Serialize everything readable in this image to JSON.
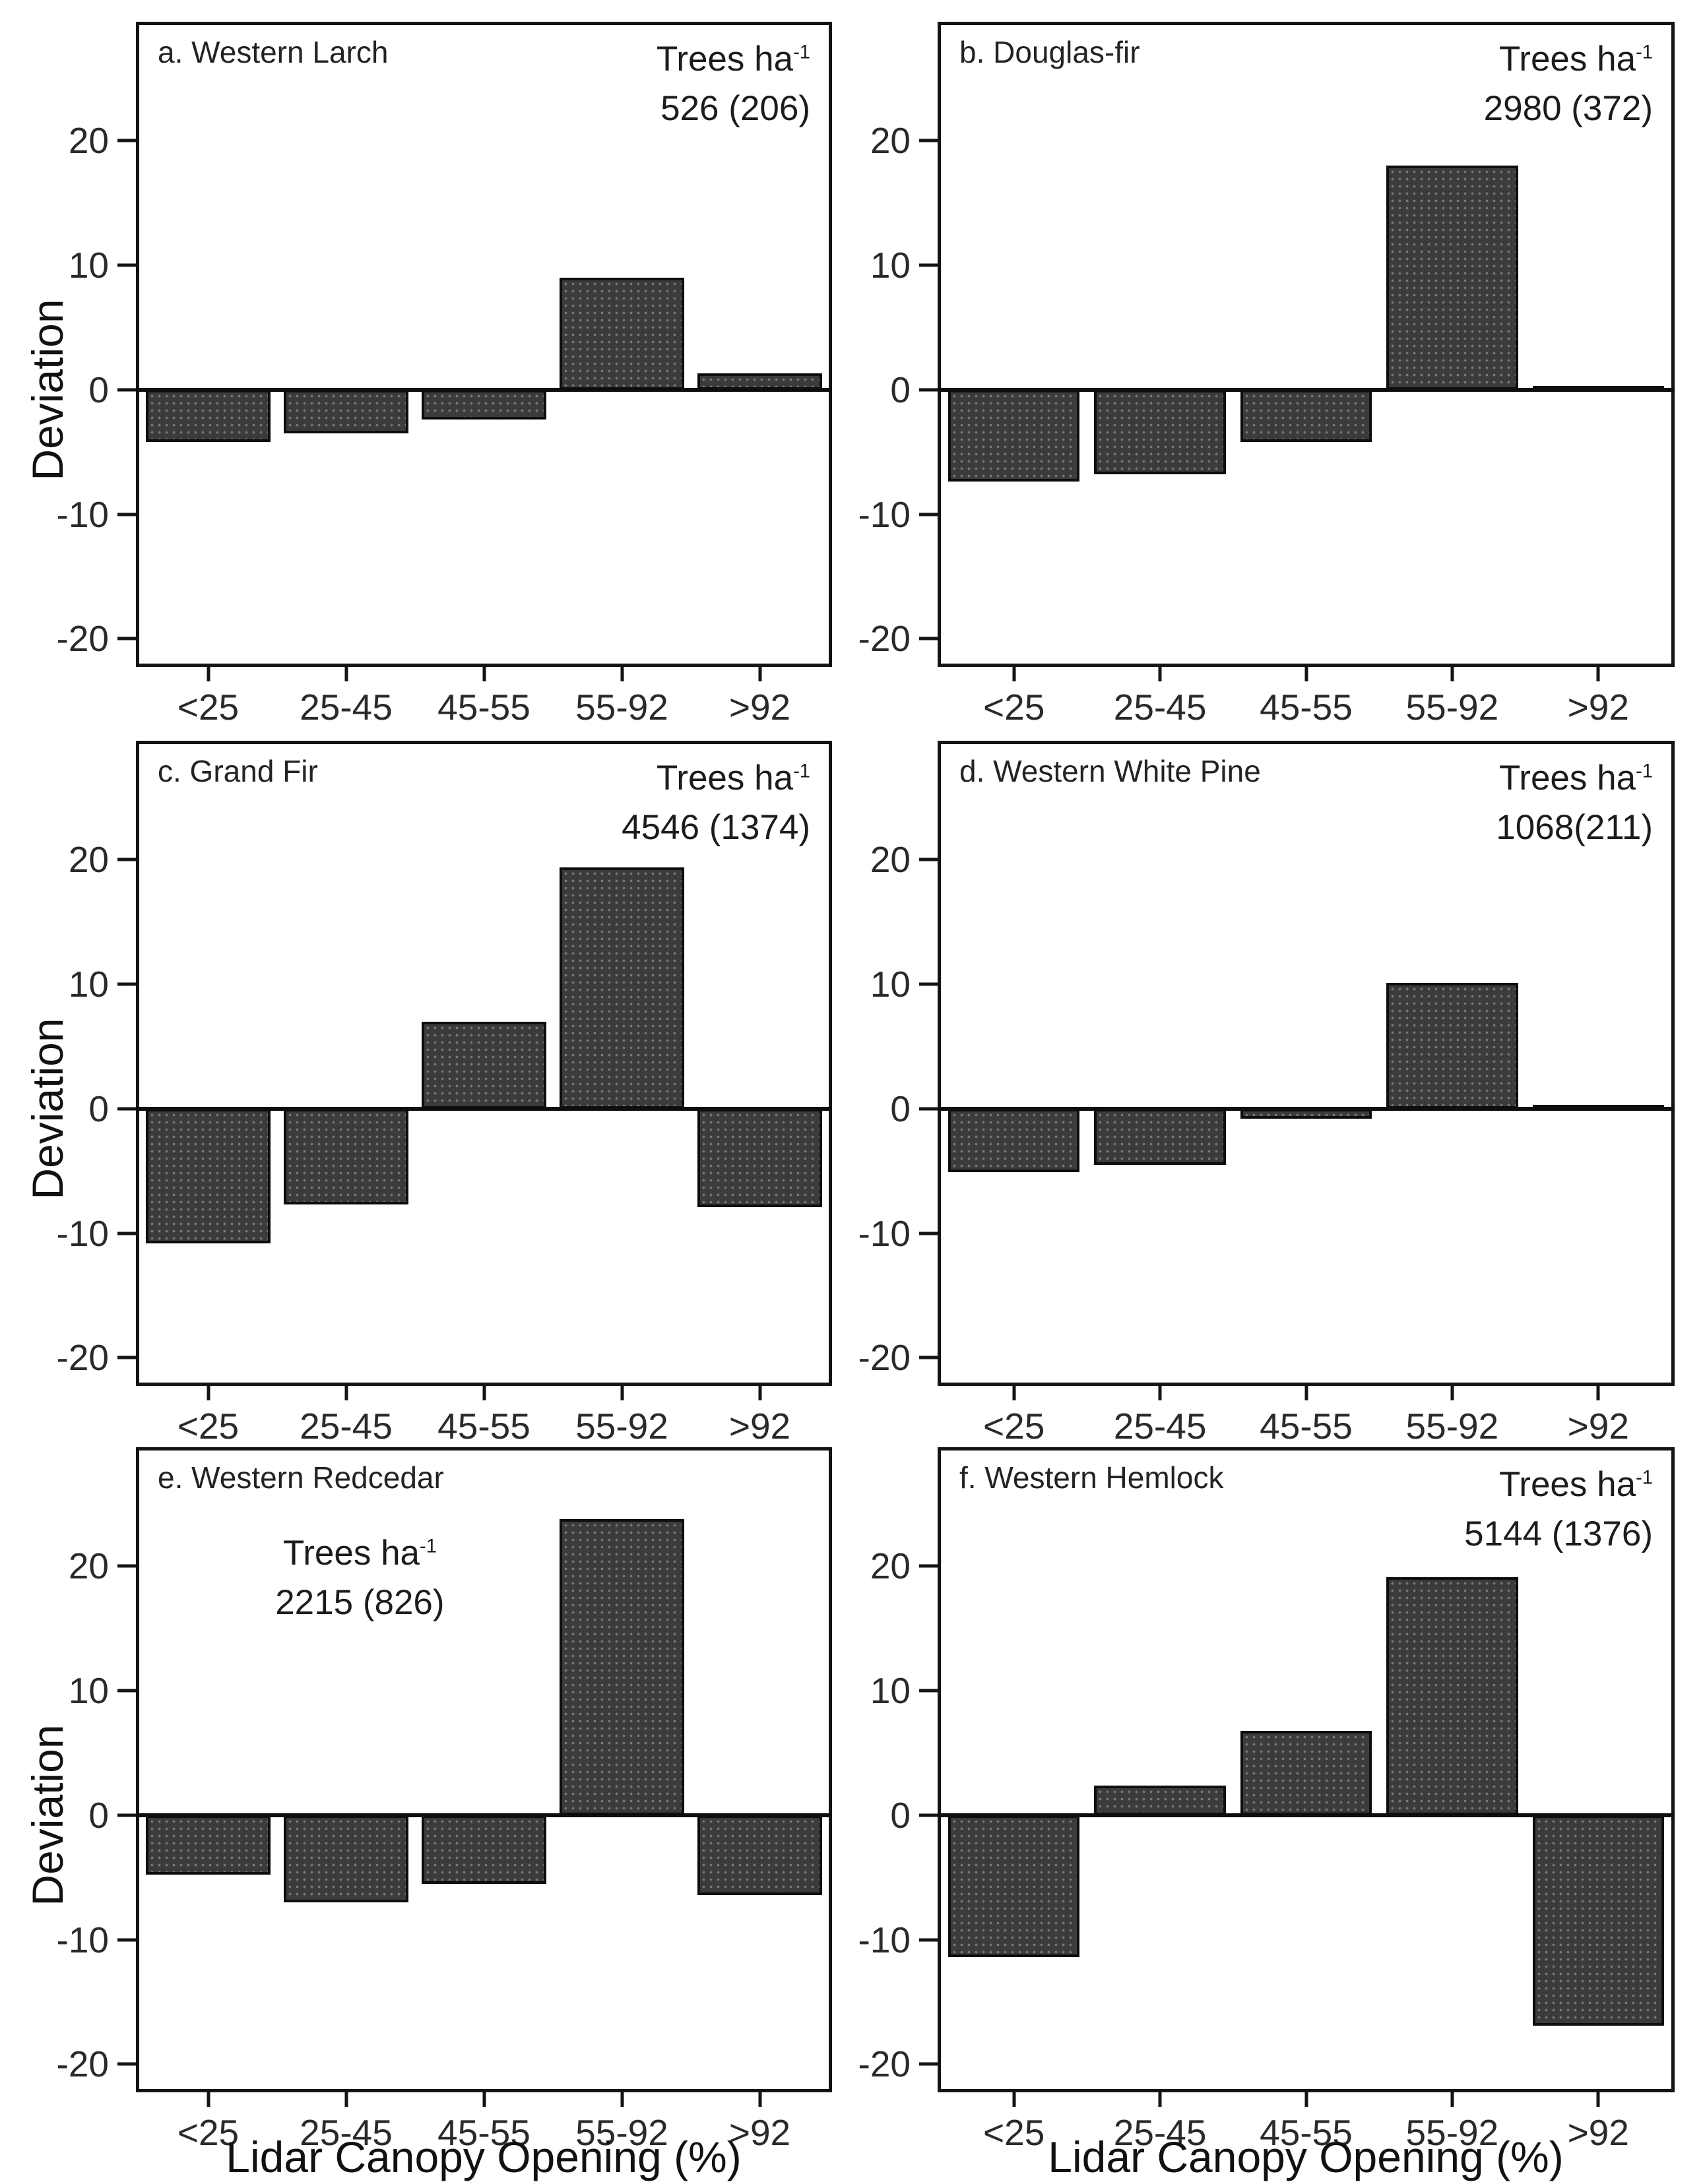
{
  "figure": {
    "background": "#ffffff",
    "text_color": "#1c1c1c",
    "bar_fill": "#3b3b3b",
    "line_color": "#141414"
  },
  "chart_data": {
    "type": "bar",
    "ylabel": "Deviation",
    "xlabel": "Lidar Canopy Opening (%)",
    "categories": [
      "<25",
      "25-45",
      "45-55",
      "55-92",
      ">92"
    ],
    "y_ticks": [
      20,
      10,
      0,
      -10,
      -20
    ],
    "ylim": [
      -22,
      29.3
    ],
    "grid": false,
    "unit_label": {
      "prefix": "Trees ha",
      "sup": "-1"
    },
    "panels": [
      {
        "id": "a",
        "title": "a. Western Larch",
        "trees_ha": "526 (206)",
        "annotation_side": "right",
        "values": [
          -4.2,
          -3.5,
          -2.4,
          9.0,
          1.3
        ]
      },
      {
        "id": "b",
        "title": "b. Douglas-fir",
        "trees_ha": "2980 (372)",
        "annotation_side": "right",
        "values": [
          -7.4,
          -6.8,
          -4.2,
          18.0,
          0.3
        ]
      },
      {
        "id": "c",
        "title": "c. Grand Fir",
        "trees_ha": "4546 (1374)",
        "annotation_side": "right",
        "values": [
          -10.8,
          -7.7,
          7.0,
          19.4,
          -7.9
        ]
      },
      {
        "id": "d",
        "title": "d. Western White Pine",
        "trees_ha": "1068(211)",
        "annotation_side": "right",
        "values": [
          -5.1,
          -4.5,
          -0.8,
          10.1,
          0.3
        ]
      },
      {
        "id": "e",
        "title": "e. Western Redcedar",
        "trees_ha": "2215 (826)",
        "annotation_side": "left",
        "values": [
          -4.8,
          -7.0,
          -5.5,
          23.8,
          -6.4
        ]
      },
      {
        "id": "f",
        "title": "f. Western Hemlock",
        "trees_ha": "5144 (1376)",
        "annotation_side": "right",
        "values": [
          -11.4,
          2.4,
          6.8,
          19.1,
          -16.9
        ]
      }
    ]
  }
}
